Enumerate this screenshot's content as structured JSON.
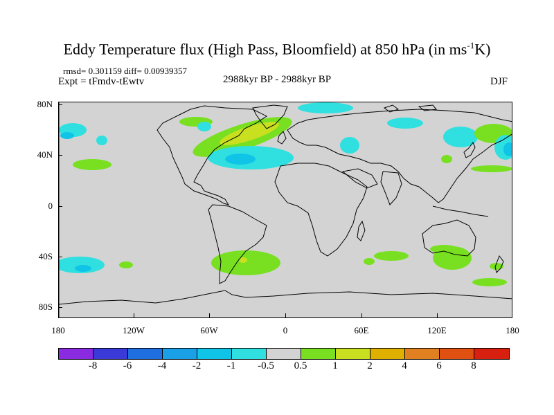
{
  "title": "Eddy Temperature flux (High Pass, Bloomfield) at 850 hPa (in ms",
  "title_superscript": "-1",
  "title_tail": "K)",
  "stats": "rmsd= 0.301159 diff= 0.00939357",
  "expt": "Expt = tFmdv-tEwtv",
  "period": "2988kyr BP - 2988kyr BP",
  "season": "DJF",
  "lat_labels": [
    "80N",
    "40N",
    "0",
    "40S",
    "80S"
  ],
  "lon_labels": [
    "180",
    "120W",
    "60W",
    "0",
    "60E",
    "120E",
    "180"
  ],
  "colorbar": {
    "labels": [
      "-8",
      "-6",
      "-4",
      "-2",
      "-1",
      "-0.5",
      "0.5",
      "1",
      "2",
      "4",
      "6",
      "8"
    ],
    "colors": [
      "#8a2be2",
      "#3a3ad8",
      "#1f6fe0",
      "#1aa0e6",
      "#10c4e8",
      "#30e0e0",
      "#d3d3d3",
      "#78e020",
      "#c8e020",
      "#e0b000",
      "#e08020",
      "#e05010",
      "#d82010"
    ]
  },
  "map": {
    "land_outline": "#000000",
    "background": "#d3d3d3"
  }
}
